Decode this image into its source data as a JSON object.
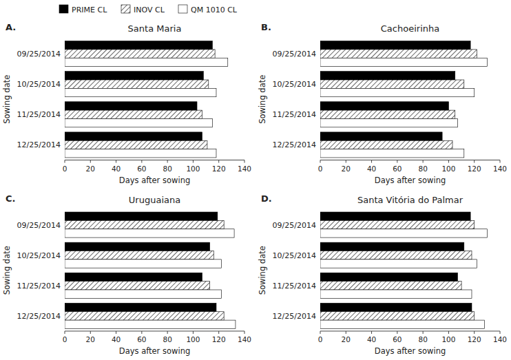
{
  "chart_data": [
    {
      "type": "bar",
      "orientation": "horizontal",
      "title": "Santa Maria",
      "annotations": [
        "A."
      ],
      "categories": [
        "09/25/2014",
        "10/25/2014",
        "11/25/2014",
        "12/25/2014"
      ],
      "series": [
        {
          "name": "PRIME CL",
          "color": "#000000",
          "values": [
            115,
            108,
            103,
            107
          ]
        },
        {
          "name": "INOV CL",
          "color": "#ffffff",
          "values": [
            117,
            112,
            107,
            111
          ]
        },
        {
          "name": "QM 1010 CL",
          "color": "#ffffff",
          "values": [
            127,
            118,
            115,
            118
          ]
        }
      ],
      "x_label": "Days after sowing",
      "y_label": "Sowing date",
      "xlim": [
        0,
        140
      ],
      "xticks": [
        0,
        20,
        40,
        60,
        80,
        100,
        120,
        140
      ],
      "grid": false,
      "legend": "top"
    },
    {
      "type": "bar",
      "orientation": "horizontal",
      "title": "Cachoeirinha",
      "annotations": [
        "B."
      ],
      "categories": [
        "09/25/2014",
        "10/25/2014",
        "11/25/2014",
        "12/25/2014"
      ],
      "series": [
        {
          "name": "PRIME CL",
          "color": "#000000",
          "values": [
            117,
            105,
            100,
            95
          ]
        },
        {
          "name": "INOV CL",
          "color": "#ffffff",
          "values": [
            122,
            112,
            105,
            103
          ]
        },
        {
          "name": "QM 1010 CL",
          "color": "#ffffff",
          "values": [
            130,
            120,
            107,
            112
          ]
        }
      ],
      "x_label": "Days after sowing",
      "y_label": "Sowing date",
      "xlim": [
        0,
        140
      ],
      "xticks": [
        0,
        20,
        40,
        60,
        80,
        100,
        120,
        140
      ],
      "grid": false
    },
    {
      "type": "bar",
      "orientation": "horizontal",
      "title": "Uruguaiana",
      "annotations": [
        "C."
      ],
      "categories": [
        "09/25/2014",
        "10/25/2014",
        "11/25/2014",
        "12/25/2014"
      ],
      "series": [
        {
          "name": "PRIME CL",
          "color": "#000000",
          "values": [
            119,
            113,
            107,
            118
          ]
        },
        {
          "name": "INOV CL",
          "color": "#ffffff",
          "values": [
            124,
            116,
            113,
            124
          ]
        },
        {
          "name": "QM 1010 CL",
          "color": "#ffffff",
          "values": [
            132,
            122,
            122,
            133
          ]
        }
      ],
      "x_label": "Days after sowing",
      "y_label": "Sowing date",
      "xlim": [
        0,
        140
      ],
      "xticks": [
        0,
        20,
        40,
        60,
        80,
        100,
        120,
        140
      ],
      "grid": false
    },
    {
      "type": "bar",
      "orientation": "horizontal",
      "title": "Santa Vitória do Palmar",
      "annotations": [
        "D."
      ],
      "categories": [
        "09/25/2014",
        "10/25/2014",
        "11/25/2014",
        "12/25/2014"
      ],
      "series": [
        {
          "name": "PRIME CL",
          "color": "#000000",
          "values": [
            117,
            112,
            107,
            118
          ]
        },
        {
          "name": "INOV CL",
          "color": "#ffffff",
          "values": [
            120,
            118,
            110,
            120
          ]
        },
        {
          "name": "QM 1010 CL",
          "color": "#ffffff",
          "values": [
            130,
            122,
            118,
            128
          ]
        }
      ],
      "x_label": "Days after sowing",
      "y_label": "Sowing date",
      "xlim": [
        0,
        140
      ],
      "xticks": [
        0,
        20,
        40,
        60,
        80,
        100,
        120,
        140
      ],
      "grid": false
    }
  ]
}
